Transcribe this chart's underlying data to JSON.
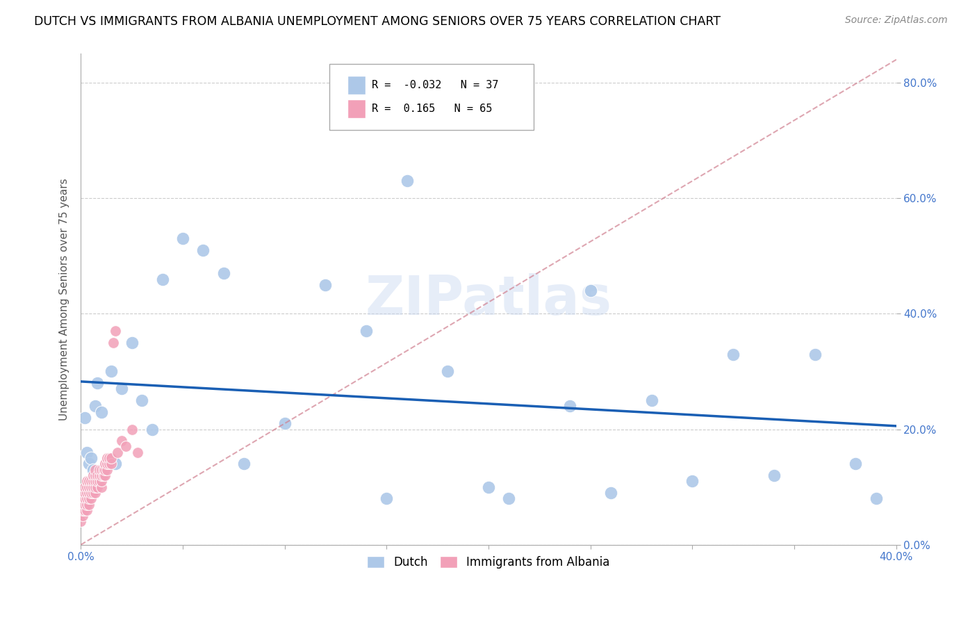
{
  "title": "DUTCH VS IMMIGRANTS FROM ALBANIA UNEMPLOYMENT AMONG SENIORS OVER 75 YEARS CORRELATION CHART",
  "source": "Source: ZipAtlas.com",
  "ylabel": "Unemployment Among Seniors over 75 years",
  "xlim": [
    0.0,
    0.4
  ],
  "ylim": [
    0.0,
    0.85
  ],
  "yticks": [
    0.0,
    0.2,
    0.4,
    0.6,
    0.8
  ],
  "dutch_R": -0.032,
  "dutch_N": 37,
  "albania_R": 0.165,
  "albania_N": 65,
  "dutch_color": "#adc8e8",
  "albania_color": "#f2a0b8",
  "dutch_line_color": "#1a5fb4",
  "albania_line_color": "#d08090",
  "dutch_x": [
    0.002,
    0.003,
    0.004,
    0.005,
    0.006,
    0.007,
    0.008,
    0.01,
    0.015,
    0.017,
    0.02,
    0.025,
    0.03,
    0.035,
    0.04,
    0.05,
    0.06,
    0.07,
    0.08,
    0.1,
    0.12,
    0.14,
    0.15,
    0.16,
    0.18,
    0.2,
    0.21,
    0.24,
    0.25,
    0.26,
    0.28,
    0.3,
    0.32,
    0.34,
    0.36,
    0.38,
    0.39
  ],
  "dutch_y": [
    0.22,
    0.16,
    0.14,
    0.15,
    0.13,
    0.24,
    0.28,
    0.23,
    0.3,
    0.14,
    0.27,
    0.35,
    0.25,
    0.2,
    0.46,
    0.53,
    0.51,
    0.47,
    0.14,
    0.21,
    0.45,
    0.37,
    0.08,
    0.63,
    0.3,
    0.1,
    0.08,
    0.24,
    0.44,
    0.09,
    0.25,
    0.11,
    0.33,
    0.12,
    0.33,
    0.14,
    0.08
  ],
  "albania_x": [
    0.0,
    0.0,
    0.001,
    0.001,
    0.001,
    0.001,
    0.001,
    0.002,
    0.002,
    0.002,
    0.002,
    0.002,
    0.003,
    0.003,
    0.003,
    0.003,
    0.003,
    0.003,
    0.004,
    0.004,
    0.004,
    0.004,
    0.004,
    0.005,
    0.005,
    0.005,
    0.005,
    0.006,
    0.006,
    0.006,
    0.006,
    0.007,
    0.007,
    0.007,
    0.007,
    0.007,
    0.008,
    0.008,
    0.008,
    0.009,
    0.009,
    0.009,
    0.01,
    0.01,
    0.01,
    0.01,
    0.011,
    0.011,
    0.012,
    0.012,
    0.012,
    0.013,
    0.013,
    0.013,
    0.014,
    0.014,
    0.015,
    0.015,
    0.016,
    0.017,
    0.018,
    0.02,
    0.022,
    0.025,
    0.028
  ],
  "albania_y": [
    0.04,
    0.06,
    0.05,
    0.06,
    0.07,
    0.08,
    0.09,
    0.06,
    0.07,
    0.08,
    0.09,
    0.1,
    0.06,
    0.07,
    0.08,
    0.09,
    0.1,
    0.11,
    0.07,
    0.08,
    0.09,
    0.1,
    0.11,
    0.08,
    0.09,
    0.1,
    0.11,
    0.09,
    0.1,
    0.11,
    0.12,
    0.09,
    0.1,
    0.11,
    0.12,
    0.13,
    0.1,
    0.11,
    0.12,
    0.11,
    0.12,
    0.13,
    0.1,
    0.11,
    0.12,
    0.13,
    0.12,
    0.13,
    0.12,
    0.13,
    0.14,
    0.13,
    0.14,
    0.15,
    0.14,
    0.15,
    0.14,
    0.15,
    0.35,
    0.37,
    0.16,
    0.18,
    0.17,
    0.2,
    0.16
  ],
  "watermark": "ZIPatlas",
  "background_color": "#ffffff",
  "grid_color": "#cccccc"
}
